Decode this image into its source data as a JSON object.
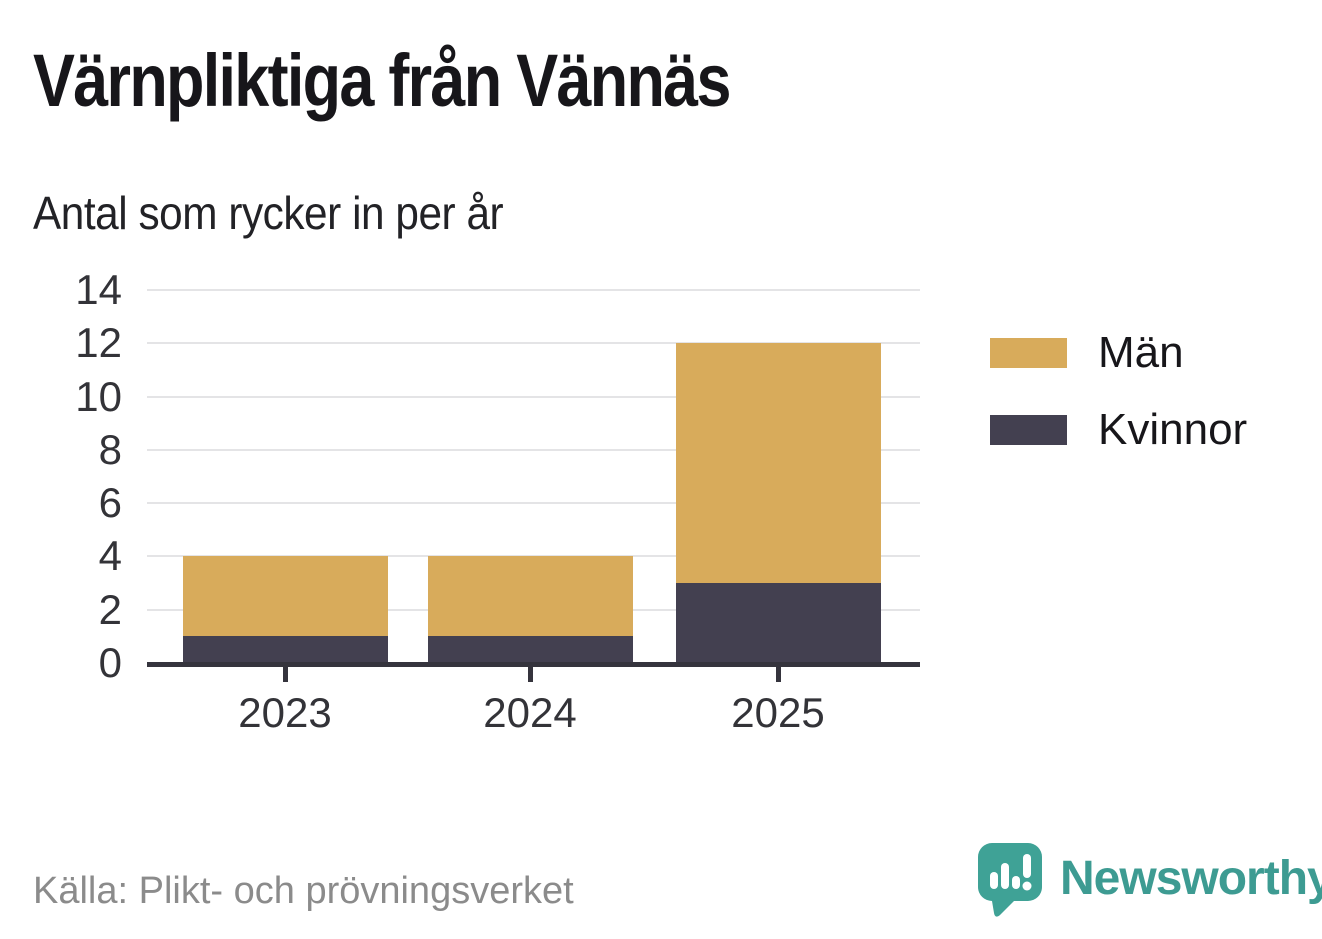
{
  "header": {
    "title": "Värnpliktiga från Vännäs",
    "subtitle": "Antal som rycker in per år"
  },
  "chart_data": {
    "type": "bar",
    "stacked": true,
    "title": "Värnpliktiga från Vännäs",
    "subtitle": "Antal som rycker in per år",
    "categories": [
      "2023",
      "2024",
      "2025"
    ],
    "series": [
      {
        "name": "Män",
        "color": "#d8ab5b",
        "values": [
          3,
          3,
          9
        ]
      },
      {
        "name": "Kvinnor",
        "color": "#434050",
        "values": [
          1,
          1,
          3
        ]
      }
    ],
    "totals": [
      4,
      4,
      12
    ],
    "ylim": [
      0,
      14
    ],
    "yticks": [
      0,
      2,
      4,
      6,
      8,
      10,
      12,
      14
    ],
    "grid": true,
    "legend_position": "right",
    "xlabel": "",
    "ylabel": ""
  },
  "footer": {
    "source": "Källa: Plikt- och prövningsverket",
    "brand": "Newsworthy"
  },
  "colors": {
    "men": "#d8ab5b",
    "women": "#434050",
    "axis": "#35343d",
    "grid": "#e4e4e6",
    "brand_teal": "#3fa296",
    "source_text": "#8b8b8b"
  }
}
